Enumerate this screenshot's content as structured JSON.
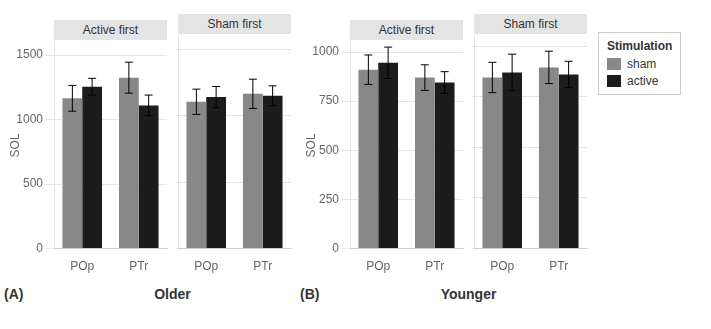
{
  "chart_data": [
    {
      "type": "bar",
      "title": "Older",
      "annotations": [
        "(A)"
      ],
      "ylabel": "SOL",
      "ylim": [
        0,
        1600
      ],
      "yticks": [
        0,
        500,
        1000,
        1500
      ],
      "grid": true,
      "facets": [
        {
          "title": "Active first",
          "categories": [
            "POp",
            "PTr"
          ],
          "series": [
            {
              "name": "sham",
              "color": "#888888",
              "values": [
                1165,
                1325
              ],
              "errors": [
                100,
                120
              ]
            },
            {
              "name": "active",
              "color": "#1c1c1c",
              "values": [
                1255,
                1110
              ],
              "errors": [
                65,
                80
              ]
            }
          ]
        },
        {
          "title": "Sham first",
          "categories": [
            "POp",
            "PTr"
          ],
          "series": [
            {
              "name": "sham",
              "color": "#888888",
              "values": [
                1105,
                1165
              ],
              "errors": [
                95,
                110
              ]
            },
            {
              "name": "active",
              "color": "#1c1c1c",
              "values": [
                1140,
                1150
              ],
              "errors": [
                80,
                75
              ]
            }
          ]
        }
      ]
    },
    {
      "type": "bar",
      "title": "Younger",
      "annotations": [
        "(B)"
      ],
      "ylabel": "SOL",
      "ylim": [
        0,
        1050
      ],
      "yticks": [
        0,
        250,
        500,
        750,
        1000
      ],
      "grid": true,
      "legend": "right",
      "legend_title": "Stimulation",
      "facets": [
        {
          "title": "Active first",
          "categories": [
            "POp",
            "PTr"
          ],
          "series": [
            {
              "name": "sham",
              "color": "#888888",
              "values": [
                910,
                870
              ],
              "errors": [
                75,
                65
              ]
            },
            {
              "name": "active",
              "color": "#1c1c1c",
              "values": [
                945,
                845
              ],
              "errors": [
                80,
                55
              ]
            }
          ]
        },
        {
          "title": "Sham first",
          "categories": [
            "POp",
            "PTr"
          ],
          "series": [
            {
              "name": "sham",
              "color": "#888888",
              "values": [
                845,
                895
              ],
              "errors": [
                75,
                80
              ]
            },
            {
              "name": "active",
              "color": "#1c1c1c",
              "values": [
                870,
                860
              ],
              "errors": [
                90,
                65
              ]
            }
          ]
        }
      ]
    }
  ]
}
